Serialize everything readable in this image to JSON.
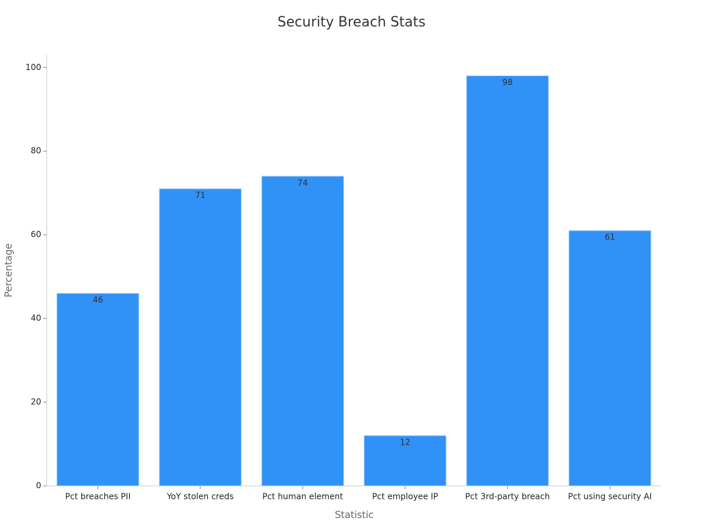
{
  "chart_data": {
    "type": "bar",
    "title": "Security Breach Stats",
    "x_label": "Statistic",
    "y_label": "Percentage",
    "categories": [
      "Pct breaches PII",
      "YoY stolen creds",
      "Pct human element",
      "Pct employee IP",
      "Pct 3rd-party breach",
      "Pct using security AI"
    ],
    "values": [
      46,
      71,
      74,
      12,
      98,
      61
    ],
    "color": "#3091f7",
    "ylim": [
      0,
      103
    ],
    "yticks": [
      0,
      20,
      40,
      60,
      80,
      100
    ],
    "grid": false
  }
}
